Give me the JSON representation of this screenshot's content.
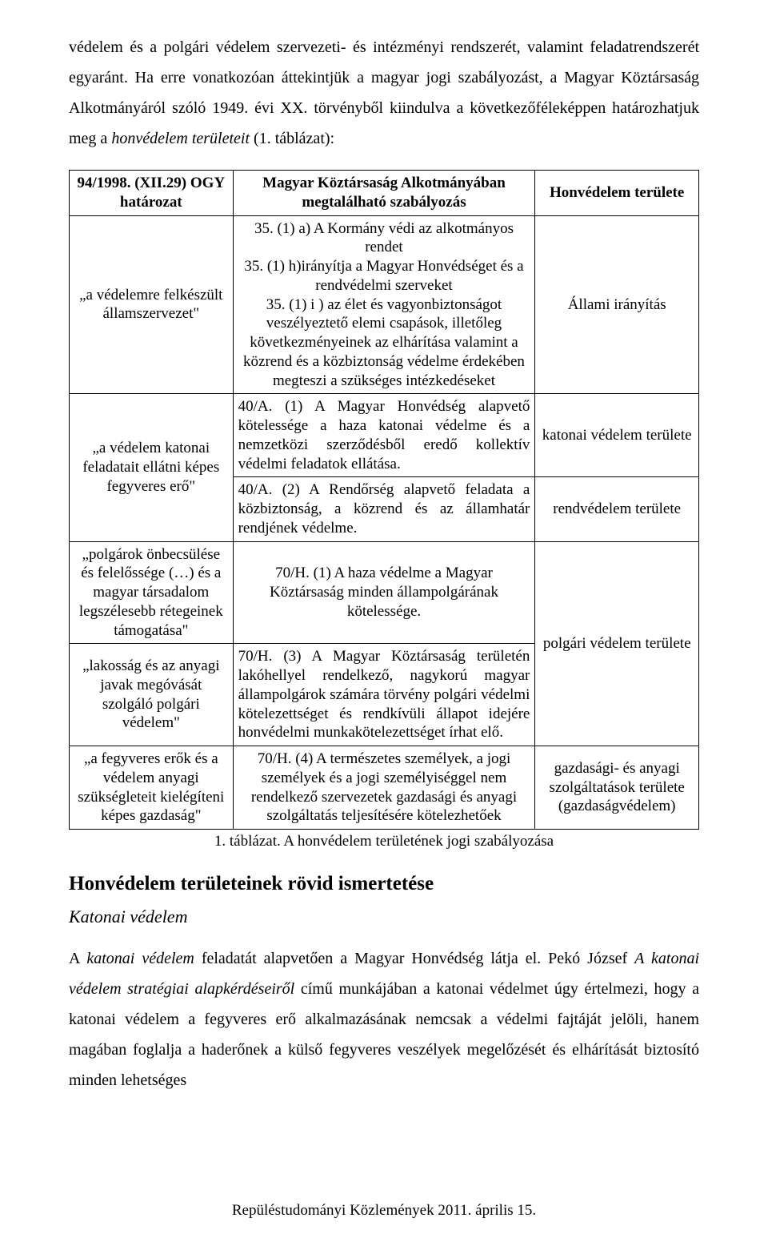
{
  "intro": {
    "p1a": "védelem és a polgári védelem szervezeti- és intézményi rendszerét, valamint feladatrendszerét egyaránt. Ha erre vonatkozóan áttekintjük a magyar jogi szabályozást, a Magyar Köztársaság Alkotmányáról szóló 1949. évi XX. törvényből kiindulva a következőféleképpen határozhatjuk meg a ",
    "p1italic": "honvédelem területeit",
    "p1b": " (1. táblázat):"
  },
  "table": {
    "head": {
      "left": "94/1998. (XII.29) OGY határozat",
      "mid": "Magyar Köztársaság Alkotmányában megtalálható szabályozás",
      "right": "Honvédelem területe"
    },
    "row1": {
      "left": "„a védelemre felkészült államszervezet\"",
      "mid": "35. (1) a) A Kormány védi az alkotmányos rendet\n35. (1) h)irányítja a Magyar Honvédséget és a rendvédelmi szerveket\n35. (1) i ) az élet és vagyonbiztonságot veszélyeztető elemi csapások, illetőleg következményeinek az elhárítása valamint a közrend és a közbiztonság védelme érdekében megteszi a szükséges intézkedéseket",
      "right": "Állami irányítás"
    },
    "row2": {
      "left": "„a védelem katonai feladatait ellátni képes fegyveres erő\"",
      "mid_a": "40/A. (1) A Magyar Honvédség alapvető kötelessége a haza katonai védelme és a nemzetközi szerződésből eredő kollektív védelmi feladatok ellátása.",
      "mid_b": "40/A. (2) A Rendőrség alapvető feladata a közbiztonság, a közrend és az államhatár rendjének védelme.",
      "right_a": "katonai védelem területe",
      "right_b": "rendvédelem területe"
    },
    "row3": {
      "left_a": "„polgárok önbecsülése és felelőssége (…) és a magyar társadalom legszélesebb rétegeinek támogatása\"",
      "mid_a": "70/H. (1) A haza védelme a Magyar Köztársaság minden állampolgárának kötelessége.",
      "left_b": "„lakosság és az anyagi javak megóvását szolgáló polgári védelem\"",
      "mid_b": "70/H. (3) A Magyar Köztársaság területén lakóhellyel rendelkező, nagykorú magyar állampolgárok számára törvény polgári védelmi kötelezettséget és rendkívüli állapot idejére honvédelmi munkakötelezettséget írhat elő.",
      "right": "polgári védelem területe"
    },
    "row4": {
      "left": "„a fegyveres erők és a védelem anyagi szükségleteit kielégíteni képes gazdaság\"",
      "mid": "70/H. (4) A természetes személyek, a jogi személyek és a jogi személyiséggel nem rendelkező szervezetek gazdasági és anyagi szolgáltatás teljesítésére kötelezhetőek",
      "right": "gazdasági- és anyagi szolgáltatások területe (gazdaságvédelem)"
    },
    "caption": "1. táblázat. A honvédelem területének jogi szabályozása"
  },
  "section_title": "Honvédelem területeinek rövid ismertetése",
  "subsection_title": "Katonai védelem",
  "body": {
    "p_a": "A ",
    "p_italic1": "katonai védelem",
    "p_b": " feladatát alapvetően a Magyar Honvédség látja el. Pekó József ",
    "p_italic2": "A katonai védelem stratégiai alapkérdéseiről",
    "p_c": " című munkájában a katonai védelmet úgy értelmezi, hogy a katonai védelem a fegyveres erő alkalmazásának nemcsak a védelmi fajtáját jelöli, hanem magában foglalja a haderőnek a külső fegyveres veszélyek megelőzését és elhárítását biztosító minden lehetséges"
  },
  "footer": "Repüléstudományi Közlemények 2011. április 15."
}
